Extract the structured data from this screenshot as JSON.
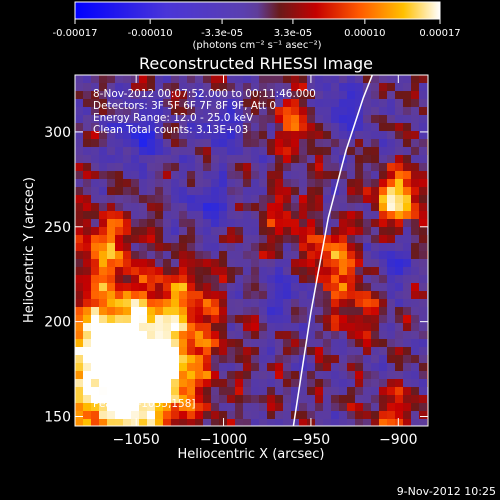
{
  "chart_data": {
    "type": "heatmap",
    "title": "Reconstructed RHESSI Image",
    "xlabel": "Heliocentric X (arcsec)",
    "ylabel": "Heliocentric Y (arcsec)",
    "xlim": [
      -1085,
      -883
    ],
    "ylim": [
      145,
      330
    ],
    "xticks": [
      -1050,
      -1000,
      -950,
      -900
    ],
    "yticks": [
      150,
      200,
      250,
      300
    ],
    "colorbar": {
      "ticks": [
        "-0.00017",
        "-0.00010",
        "-3.3e-05",
        "3.3e-05",
        "0.00010",
        "0.00017"
      ],
      "range": [
        -0.00017,
        0.00017
      ],
      "label": "(photons cm⁻² s⁻¹ asec⁻²)"
    },
    "annotations": [
      "8-Nov-2012 00:07:52.000 to 00:11:46.000",
      "Detectors: 3F 5F 6F 7F 8F 9F, Att 0",
      "Energy Range: 12.0 - 25.0 keV",
      "Clean     Total counts: 3.13E+03"
    ],
    "peak_label": "Peak = [-1055,158]",
    "limb_curve": [
      [
        -960,
        145
      ],
      [
        -950,
        205
      ],
      [
        -940,
        255
      ],
      [
        -930,
        290
      ],
      [
        -920,
        318
      ],
      [
        -914,
        332
      ]
    ],
    "hotspots": [
      {
        "x": -1058,
        "y": 160,
        "v": 1.0,
        "r": 24
      },
      {
        "x": -1062,
        "y": 192,
        "v": 0.85,
        "r": 20
      },
      {
        "x": -1030,
        "y": 178,
        "v": 0.55,
        "r": 16
      },
      {
        "x": -1068,
        "y": 240,
        "v": 0.55,
        "r": 12
      },
      {
        "x": -1022,
        "y": 212,
        "v": 0.45,
        "r": 14
      },
      {
        "x": -958,
        "y": 305,
        "v": 0.5,
        "r": 10
      },
      {
        "x": -938,
        "y": 235,
        "v": 0.6,
        "r": 10
      },
      {
        "x": -900,
        "y": 265,
        "v": 0.9,
        "r": 10
      },
      {
        "x": -925,
        "y": 212,
        "v": 0.4,
        "r": 12
      },
      {
        "x": -902,
        "y": 150,
        "v": 0.4,
        "r": 10
      },
      {
        "x": -965,
        "y": 255,
        "v": 0.35,
        "r": 10
      }
    ],
    "cold_spots": [
      {
        "x": -1048,
        "y": 298,
        "v": -0.6,
        "r": 10
      },
      {
        "x": -1008,
        "y": 262,
        "v": -0.5,
        "r": 9
      },
      {
        "x": -932,
        "y": 312,
        "v": -0.5,
        "r": 10
      },
      {
        "x": -905,
        "y": 230,
        "v": -0.45,
        "r": 9
      },
      {
        "x": -1002,
        "y": 303,
        "v": -0.45,
        "r": 9
      },
      {
        "x": -965,
        "y": 215,
        "v": -0.4,
        "r": 9
      }
    ]
  },
  "footer": {
    "timestamp": "9-Nov-2012 10:25"
  }
}
